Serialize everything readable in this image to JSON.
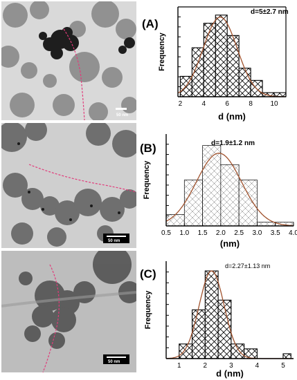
{
  "colors": {
    "fit_curve": "#a0522d",
    "bar_stroke": "#000000",
    "tem_background": "#c8c8c8",
    "tem_particle": "#6e6e6e",
    "scale_bar": "#000000"
  },
  "micrographs": [
    {
      "scale_label": "50 nm"
    },
    {
      "scale_label": "50 nm"
    },
    {
      "scale_label": "50 nm"
    }
  ],
  "chart_data": [
    {
      "type": "bar",
      "panel_label": "(A)",
      "annotation": "d=5±2.7 nm",
      "xlabel": "d (nm)",
      "ylabel": "Frequency",
      "xlim": [
        1.8,
        11
      ],
      "xticks": [
        2,
        4,
        6,
        8,
        10
      ],
      "y_ticks_labeled": false,
      "hatch": "crosshatch",
      "bins": [
        {
          "start": 2,
          "end": 3,
          "value": 5
        },
        {
          "start": 3,
          "end": 4,
          "value": 12
        },
        {
          "start": 4,
          "end": 5,
          "value": 18
        },
        {
          "start": 5,
          "end": 6,
          "value": 20
        },
        {
          "start": 6,
          "end": 7,
          "value": 15
        },
        {
          "start": 7,
          "end": 8,
          "value": 7
        },
        {
          "start": 8,
          "end": 9,
          "value": 4
        },
        {
          "start": 9,
          "end": 10,
          "value": 1
        },
        {
          "start": 10,
          "end": 11,
          "value": 1
        }
      ],
      "ylim": [
        0,
        22
      ],
      "fit": {
        "mean": 5.4,
        "sigma": 1.45,
        "peak": 19.5
      }
    },
    {
      "type": "bar",
      "panel_label": "(B)",
      "annotation": "d=1.9±1.2 nm",
      "xlabel": "(nm)",
      "ylabel": "Frequency",
      "xlim": [
        0.5,
        4.0
      ],
      "xticks": [
        0.5,
        1.0,
        1.5,
        2.0,
        2.5,
        3.0,
        3.5,
        4.0
      ],
      "y_ticks_labeled": false,
      "hatch": "diagonal",
      "bins": [
        {
          "start": 0.5,
          "end": 1.0,
          "value": 3
        },
        {
          "start": 1.0,
          "end": 1.5,
          "value": 12
        },
        {
          "start": 1.5,
          "end": 2.0,
          "value": 21
        },
        {
          "start": 2.0,
          "end": 2.5,
          "value": 16
        },
        {
          "start": 2.5,
          "end": 3.0,
          "value": 12
        },
        {
          "start": 3.0,
          "end": 3.5,
          "value": 1
        },
        {
          "start": 3.5,
          "end": 4.0,
          "value": 1
        }
      ],
      "ylim": [
        0,
        24
      ],
      "fit": {
        "mean": 1.95,
        "sigma": 0.62,
        "peak": 19
      }
    },
    {
      "type": "bar",
      "panel_label": "(C)",
      "annotation": "d=2.27±1.13 nm",
      "xlabel": "d (nm)",
      "ylabel": "Frequency",
      "xlim": [
        0.5,
        5.4
      ],
      "xticks": [
        1,
        2,
        3,
        4,
        5
      ],
      "y_ticks_labeled": false,
      "hatch": "crosshatch",
      "bins": [
        {
          "start": 1.0,
          "end": 1.5,
          "value": 3
        },
        {
          "start": 1.5,
          "end": 2.0,
          "value": 10
        },
        {
          "start": 2.0,
          "end": 2.5,
          "value": 18
        },
        {
          "start": 2.5,
          "end": 3.0,
          "value": 12
        },
        {
          "start": 3.0,
          "end": 3.5,
          "value": 3
        },
        {
          "start": 3.5,
          "end": 4.0,
          "value": 2
        },
        {
          "start": 5.0,
          "end": 5.3,
          "value": 1
        }
      ],
      "ylim": [
        0,
        20
      ],
      "fit": {
        "mean": 2.25,
        "sigma": 0.48,
        "peak": 18
      }
    }
  ]
}
